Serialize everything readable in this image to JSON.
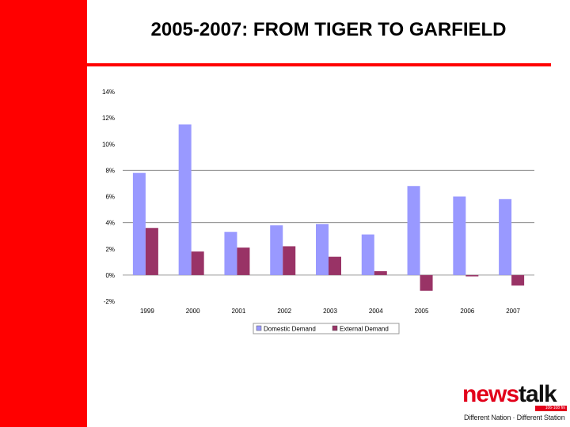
{
  "slide": {
    "title": "2005-2007: FROM TIGER TO GARFIELD"
  },
  "logo": {
    "news": "news",
    "talk": "talk",
    "frequency": "106-108 fm",
    "tagline": "Different Nation · Different Station"
  },
  "colors": {
    "accent": "#ff0000",
    "domestic": "#9999ff",
    "external": "#993366"
  },
  "chart_data": {
    "type": "bar",
    "categories": [
      "1999",
      "2000",
      "2001",
      "2002",
      "2003",
      "2004",
      "2005",
      "2006",
      "2007"
    ],
    "series": [
      {
        "name": "Domestic Demand",
        "values": [
          7.8,
          11.5,
          3.3,
          3.8,
          3.9,
          3.1,
          6.8,
          6.0,
          5.8
        ]
      },
      {
        "name": "External Demand",
        "values": [
          3.6,
          1.8,
          2.1,
          2.2,
          1.4,
          0.3,
          -1.2,
          -0.1,
          -0.8
        ]
      }
    ],
    "ylim": [
      -2,
      14
    ],
    "yticks": [
      "14%",
      "12%",
      "10%",
      "8%",
      "6%",
      "4%",
      "2%",
      "0%",
      "-2%"
    ],
    "gridlines": [
      8,
      4
    ],
    "legend_position": "bottom",
    "title": "",
    "xlabel": "",
    "ylabel": ""
  }
}
